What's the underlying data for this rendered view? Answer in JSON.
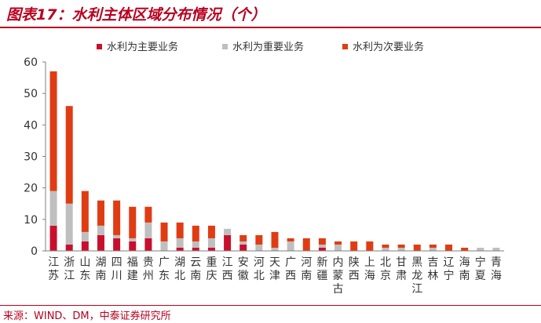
{
  "header": {
    "title": "图表17：水利主体区域分布情况（个）"
  },
  "footer": {
    "source": "来源：WIND、DM，中泰证券研究所"
  },
  "colors": {
    "brand": "#b8001f",
    "major": "#c8102e",
    "important": "#bfbfbf",
    "secondary": "#e03c14",
    "axis": "#7f7f7f"
  },
  "chart_data": {
    "type": "bar",
    "stacked": true,
    "ylim": [
      0,
      60
    ],
    "yticks": [
      0,
      10,
      20,
      30,
      40,
      50,
      60
    ],
    "grid": false,
    "legend_position": "top",
    "categories": [
      "江苏",
      "浙江",
      "山东",
      "湖南",
      "四川",
      "福建",
      "贵州",
      "广东",
      "湖北",
      "云南",
      "重庆",
      "江西",
      "安徽",
      "河北",
      "天津",
      "广西",
      "河南",
      "新疆",
      "内蒙古",
      "陕西",
      "上海",
      "北京",
      "甘肃",
      "黑龙江",
      "吉林",
      "辽宁",
      "海南",
      "宁夏",
      "青海"
    ],
    "series": [
      {
        "name": "水利为主要业务",
        "color": "#c8102e",
        "values": [
          8,
          2,
          3,
          5,
          4,
          3,
          4,
          0,
          1,
          1,
          1,
          5,
          2,
          0,
          0,
          0,
          0,
          1,
          0,
          0,
          0,
          0,
          0,
          0,
          0,
          0,
          0,
          0,
          0
        ]
      },
      {
        "name": "水利为重要业务",
        "color": "#bfbfbf",
        "values": [
          11,
          13,
          3,
          3,
          1,
          1,
          5,
          3,
          3,
          2,
          3,
          2,
          1,
          2,
          1,
          3,
          0,
          1,
          2,
          0,
          0,
          1,
          1,
          0,
          1,
          0,
          0,
          1,
          1
        ]
      },
      {
        "name": "水利为次要业务",
        "color": "#e03c14",
        "values": [
          38,
          31,
          13,
          8,
          11,
          10,
          5,
          6,
          5,
          5,
          4,
          0,
          2,
          3,
          5,
          1,
          4,
          2,
          1,
          3,
          3,
          1,
          1,
          2,
          1,
          2,
          1,
          0,
          0
        ]
      }
    ]
  }
}
